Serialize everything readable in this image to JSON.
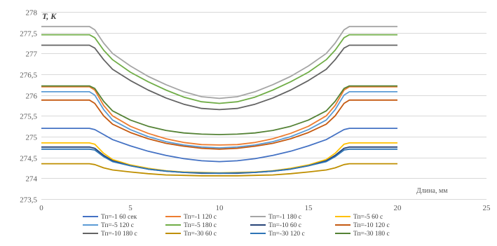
{
  "chart_data": {
    "type": "line",
    "ylabel": "T, K",
    "xlabel": "Длина, мм",
    "xlim": [
      0,
      25
    ],
    "ylim": [
      273.5,
      278
    ],
    "xticks": [
      0,
      5,
      10,
      15,
      20,
      25
    ],
    "yticks": [
      "273,5",
      "274",
      "274,5",
      "275",
      "275,5",
      "276",
      "276,5",
      "277",
      "277,5",
      "278"
    ],
    "ytick_values": [
      273.5,
      274,
      274.5,
      275,
      275.5,
      276,
      276.5,
      277,
      277.5,
      278
    ],
    "grid": "horizontal",
    "legend_position": "bottom",
    "x": [
      0,
      2.7,
      3,
      3.5,
      4,
      5,
      6,
      7,
      8,
      9,
      10,
      11,
      12,
      13,
      14,
      15,
      16,
      16.5,
      17,
      17.3,
      20
    ],
    "series": [
      {
        "name": "Тп=-1  60 сек",
        "color": "#4472c4",
        "values": [
          275.2,
          275.2,
          275.17,
          275.05,
          274.93,
          274.78,
          274.65,
          274.55,
          274.47,
          274.42,
          274.4,
          274.42,
          274.47,
          274.55,
          274.65,
          274.78,
          274.93,
          275.05,
          275.17,
          275.2,
          275.2
        ]
      },
      {
        "name": "Тп=-1 120 с",
        "color": "#ed7d31",
        "values": [
          276.2,
          276.2,
          276.12,
          275.75,
          275.5,
          275.25,
          275.08,
          274.95,
          274.86,
          274.81,
          274.8,
          274.81,
          274.86,
          274.95,
          275.08,
          275.25,
          275.5,
          275.75,
          276.12,
          276.2,
          276.2
        ]
      },
      {
        "name": "Тп=-1  180 с",
        "color": "#a5a5a5",
        "values": [
          277.65,
          277.65,
          277.57,
          277.25,
          277.0,
          276.7,
          276.45,
          276.25,
          276.08,
          275.96,
          275.92,
          275.96,
          276.08,
          276.25,
          276.45,
          276.7,
          277.0,
          277.25,
          277.57,
          277.65,
          277.65
        ]
      },
      {
        "name": "Тп=-5  60 с",
        "color": "#ffc000",
        "values": [
          274.85,
          274.85,
          274.82,
          274.6,
          274.45,
          274.32,
          274.24,
          274.18,
          274.15,
          274.14,
          274.13,
          274.14,
          274.15,
          274.18,
          274.24,
          274.32,
          274.45,
          274.6,
          274.82,
          274.85,
          274.85
        ]
      },
      {
        "name": "Тп=-5  120 с",
        "color": "#5b9bd5",
        "values": [
          276.08,
          276.08,
          276.0,
          275.65,
          275.4,
          275.17,
          275.0,
          274.88,
          274.8,
          274.75,
          274.73,
          274.75,
          274.8,
          274.88,
          275.0,
          275.17,
          275.4,
          275.65,
          276.0,
          276.08,
          276.08
        ]
      },
      {
        "name": "Тп=-5  180 с",
        "color": "#70ad47",
        "values": [
          277.45,
          277.45,
          277.38,
          277.08,
          276.85,
          276.55,
          276.32,
          276.12,
          275.95,
          275.84,
          275.8,
          275.84,
          275.95,
          276.12,
          276.32,
          276.55,
          276.85,
          277.08,
          277.38,
          277.45,
          277.45
        ]
      },
      {
        "name": "Тп=-10 60 с",
        "color": "#264478",
        "values": [
          274.75,
          274.75,
          274.72,
          274.55,
          274.42,
          274.3,
          274.22,
          274.17,
          274.14,
          274.12,
          274.12,
          274.12,
          274.14,
          274.17,
          274.22,
          274.3,
          274.42,
          274.55,
          274.72,
          274.75,
          274.75
        ]
      },
      {
        "name": "Тп=-10 120 с",
        "color": "#c55a11",
        "values": [
          275.88,
          275.88,
          275.8,
          275.5,
          275.3,
          275.1,
          274.95,
          274.84,
          274.77,
          274.72,
          274.7,
          274.72,
          274.77,
          274.84,
          274.95,
          275.1,
          275.3,
          275.5,
          275.8,
          275.88,
          275.88
        ]
      },
      {
        "name": "Тп=-10 180 с",
        "color": "#636363",
        "values": [
          277.2,
          277.2,
          277.13,
          276.85,
          276.62,
          276.35,
          276.12,
          275.93,
          275.78,
          275.68,
          275.65,
          275.68,
          275.78,
          275.93,
          276.12,
          276.35,
          276.62,
          276.85,
          277.13,
          277.2,
          277.2
        ]
      },
      {
        "name": "Тп=-30  60 с",
        "color": "#bf8f00",
        "values": [
          274.35,
          274.35,
          274.33,
          274.25,
          274.2,
          274.15,
          274.11,
          274.08,
          274.07,
          274.06,
          274.06,
          274.06,
          274.07,
          274.08,
          274.11,
          274.15,
          274.2,
          274.25,
          274.33,
          274.35,
          274.35
        ]
      },
      {
        "name": "Тп=-30  120 с",
        "color": "#2e75b6",
        "values": [
          274.7,
          274.7,
          274.68,
          274.52,
          274.4,
          274.3,
          274.22,
          274.17,
          274.14,
          274.13,
          274.12,
          274.13,
          274.14,
          274.17,
          274.22,
          274.3,
          274.4,
          274.52,
          274.68,
          274.7,
          274.7
        ]
      },
      {
        "name": "Тп=-30  180 с",
        "color": "#548235",
        "values": [
          276.22,
          276.22,
          276.16,
          275.85,
          275.62,
          275.4,
          275.25,
          275.15,
          275.09,
          275.06,
          275.05,
          275.06,
          275.09,
          275.15,
          275.25,
          275.4,
          275.62,
          275.85,
          276.16,
          276.22,
          276.22
        ]
      }
    ]
  }
}
